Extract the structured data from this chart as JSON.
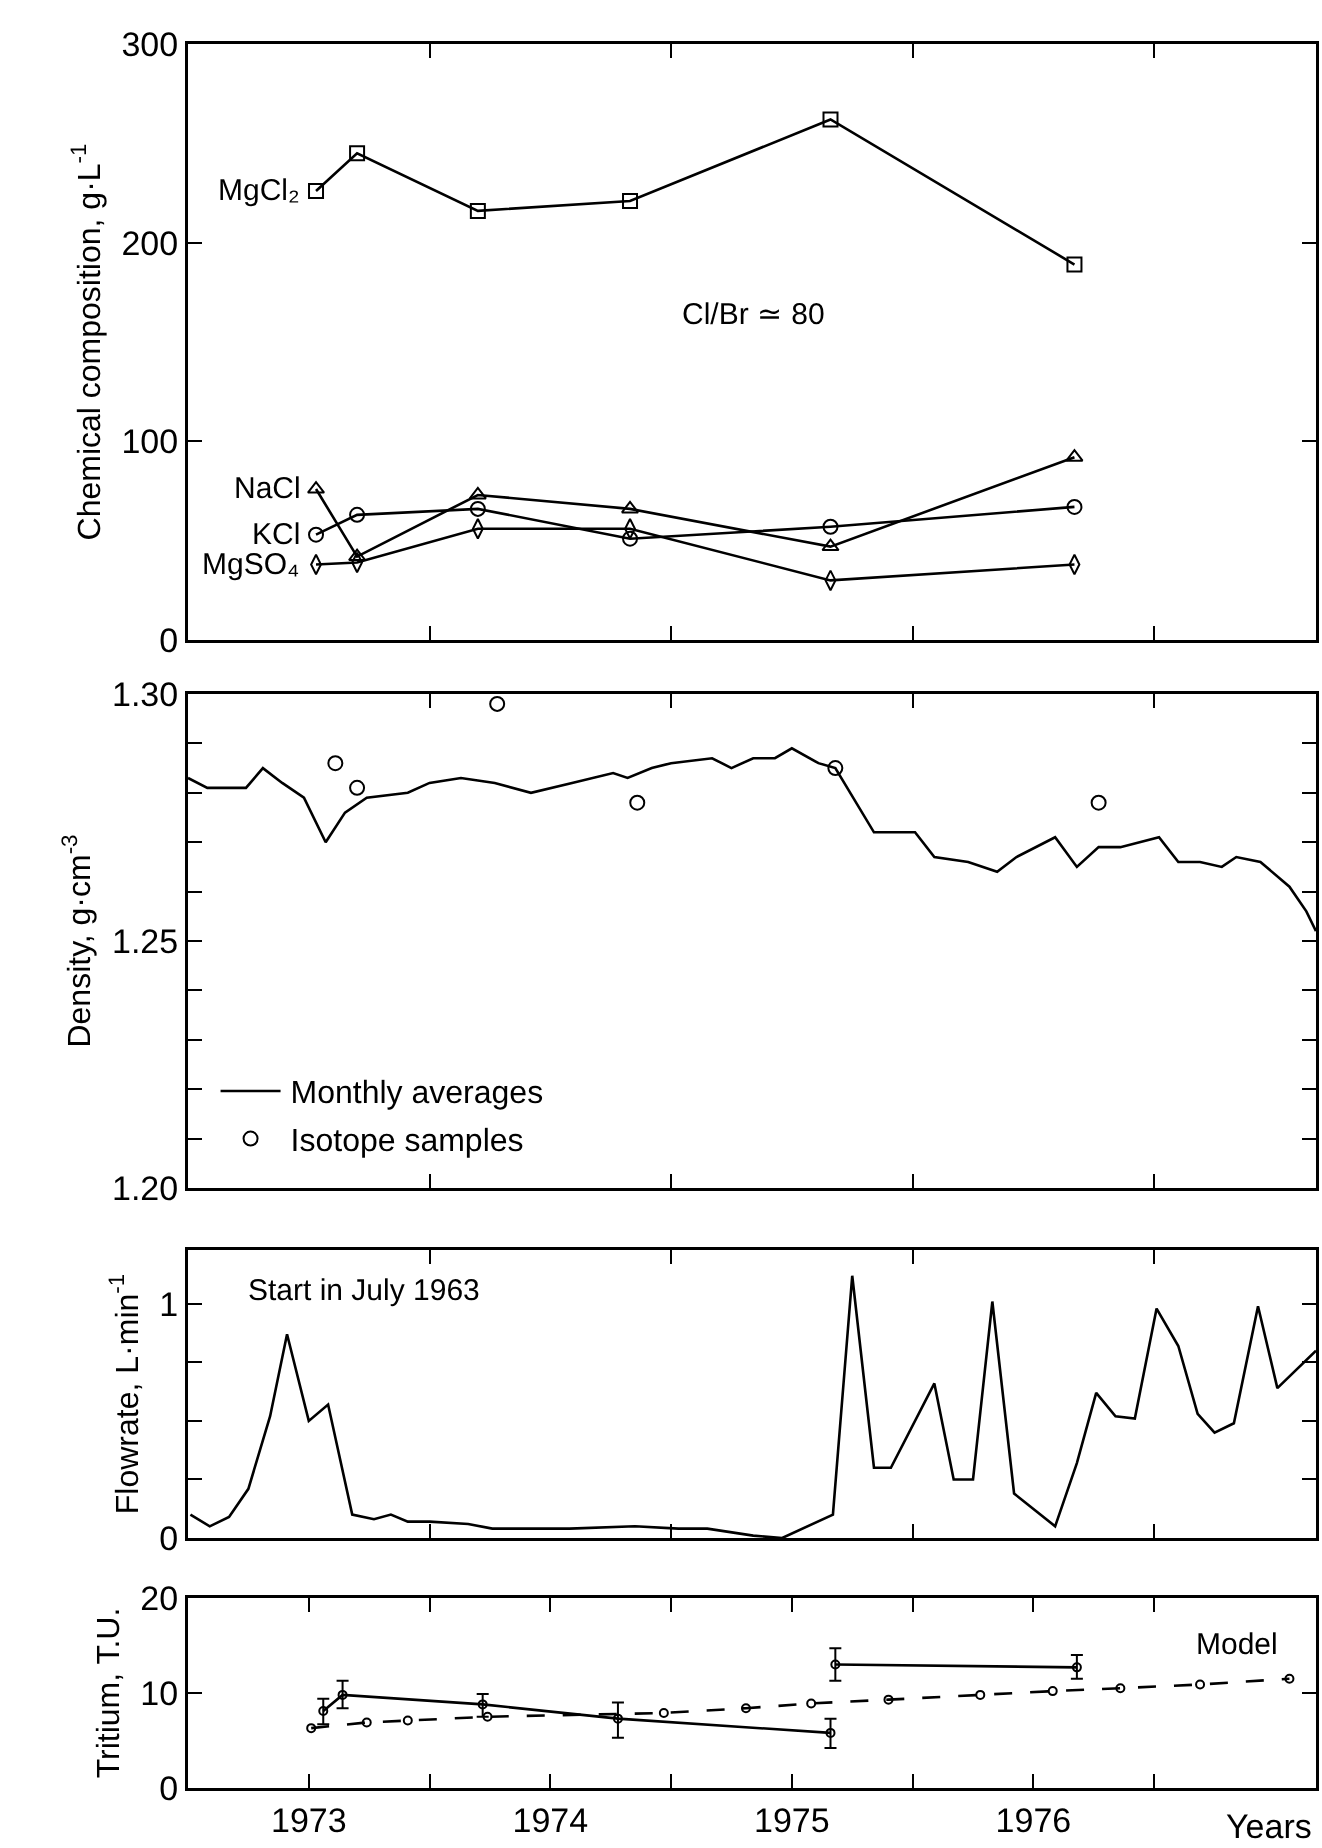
{
  "chart_data": [
    {
      "type": "line",
      "ylabel": "Chemical composition, g·L$^{-1}$",
      "annotations": [
        "Cl/Br ≃ 80"
      ],
      "x": [
        1973.53,
        1973.7,
        1974.2,
        1974.83,
        1975.66,
        1976.67
      ],
      "series": [
        {
          "name": "MgCl₂",
          "color": "#000000",
          "marker": "square",
          "values": [
            226,
            245,
            216,
            221,
            262,
            189
          ]
        },
        {
          "name": "NaCl",
          "color": "#000000",
          "marker": "triangle",
          "values": [
            76,
            42,
            73,
            66,
            47,
            92
          ]
        },
        {
          "name": "KCl",
          "color": "#000000",
          "marker": "circle",
          "values": [
            53,
            63,
            66,
            51,
            57,
            67
          ]
        },
        {
          "name": "MgSO₄",
          "color": "#000000",
          "marker": "diamond",
          "values": [
            38,
            39,
            56,
            56,
            30,
            38
          ]
        }
      ],
      "xlim": [
        1973,
        1977.67
      ],
      "xticks": [
        {
          "value": 1974,
          "label": null
        },
        {
          "value": 1975,
          "label": null
        },
        {
          "value": 1976,
          "label": null
        },
        {
          "value": 1977,
          "label": null
        }
      ],
      "ylim": [
        0,
        300
      ],
      "yticks": [
        0,
        100,
        200,
        300
      ],
      "tick_labels": "y",
      "grid": false,
      "legend": false
    },
    {
      "type": "line",
      "ylabel": "Density, g·cm$^{-3}$",
      "series": [
        {
          "name": "Monthly averages",
          "color": "#000000",
          "marker": "none",
          "x": [
            1973.0,
            1973.08,
            1973.16,
            1973.24,
            1973.31,
            1973.39,
            1973.48,
            1973.57,
            1973.65,
            1973.74,
            1973.91,
            1974.0,
            1974.13,
            1974.27,
            1974.42,
            1974.59,
            1974.76,
            1974.82,
            1974.92,
            1975.0,
            1975.17,
            1975.25,
            1975.34,
            1975.43,
            1975.5,
            1975.61,
            1975.68,
            1975.84,
            1975.93,
            1976.01,
            1976.09,
            1976.23,
            1976.35,
            1976.43,
            1976.59,
            1976.68,
            1976.77,
            1976.86,
            1977.02,
            1977.1,
            1977.19,
            1977.28,
            1977.34,
            1977.44,
            1977.56,
            1977.63,
            1977.67
          ],
          "values": [
            1.283,
            1.281,
            1.281,
            1.281,
            1.285,
            1.282,
            1.279,
            1.27,
            1.276,
            1.279,
            1.28,
            1.282,
            1.283,
            1.282,
            1.28,
            1.282,
            1.284,
            1.283,
            1.285,
            1.286,
            1.287,
            1.285,
            1.287,
            1.287,
            1.289,
            1.286,
            1.285,
            1.272,
            1.272,
            1.272,
            1.267,
            1.266,
            1.264,
            1.267,
            1.271,
            1.265,
            1.269,
            1.269,
            1.271,
            1.266,
            1.266,
            1.265,
            1.267,
            1.266,
            1.261,
            1.256,
            1.252
          ]
        },
        {
          "name": "Isotope samples",
          "type": "scatter",
          "color": "#000000",
          "marker": "circle",
          "x": [
            1973.61,
            1973.7,
            1974.28,
            1974.86,
            1975.68,
            1976.77
          ],
          "values": [
            1.286,
            1.281,
            1.298,
            1.278,
            1.285,
            1.278
          ]
        }
      ],
      "xlim": [
        1973,
        1977.67
      ],
      "xticks": [
        {
          "value": 1974,
          "label": null
        },
        {
          "value": 1975,
          "label": null
        },
        {
          "value": 1976,
          "label": null
        },
        {
          "value": 1977,
          "label": null
        }
      ],
      "ylim": [
        1.2,
        1.3
      ],
      "yticks": [
        {
          "value": 1.2,
          "label": "1.20"
        },
        {
          "value": 1.21,
          "label": null
        },
        {
          "value": 1.22,
          "label": null
        },
        {
          "value": 1.23,
          "label": null
        },
        {
          "value": 1.24,
          "label": null
        },
        {
          "value": 1.25,
          "label": "1.25"
        },
        {
          "value": 1.26,
          "label": null
        },
        {
          "value": 1.27,
          "label": null
        },
        {
          "value": 1.28,
          "label": null
        },
        {
          "value": 1.29,
          "label": null
        },
        {
          "value": 1.3,
          "label": "1.30"
        }
      ],
      "tick_labels": "y",
      "grid": false,
      "legend": "bottom left"
    },
    {
      "type": "line",
      "ylabel": "Flowrate, L·min$^{-1}$",
      "annotations": [
        "Start in July 1963"
      ],
      "x": [
        1973.01,
        1973.09,
        1973.17,
        1973.25,
        1973.34,
        1973.41,
        1973.5,
        1973.58,
        1973.68,
        1973.77,
        1973.84,
        1973.91,
        1974.0,
        1974.16,
        1974.26,
        1974.42,
        1974.58,
        1974.85,
        1975.03,
        1975.15,
        1975.34,
        1975.46,
        1975.67,
        1975.75,
        1975.84,
        1975.91,
        1976.09,
        1976.17,
        1976.25,
        1976.33,
        1976.42,
        1976.59,
        1976.68,
        1976.76,
        1976.84,
        1976.92,
        1977.01,
        1977.1,
        1977.18,
        1977.25,
        1977.33,
        1977.43,
        1977.51,
        1977.67
      ],
      "values": [
        0.1,
        0.05,
        0.09,
        0.21,
        0.52,
        0.87,
        0.5,
        0.57,
        0.1,
        0.08,
        0.1,
        0.07,
        0.07,
        0.06,
        0.04,
        0.04,
        0.04,
        0.05,
        0.04,
        0.04,
        0.01,
        0,
        0.1,
        1.12,
        0.3,
        0.3,
        0.66,
        0.25,
        0.25,
        1.01,
        0.19,
        0.05,
        0.32,
        0.62,
        0.52,
        0.51,
        0.98,
        0.82,
        0.53,
        0.45,
        0.49,
        0.99,
        0.64,
        0.8
      ],
      "color": "#000000",
      "marker": "none",
      "xlim": [
        1973,
        1977.67
      ],
      "xticks": [
        {
          "value": 1974,
          "label": null
        },
        {
          "value": 1975,
          "label": null
        },
        {
          "value": 1976,
          "label": null
        },
        {
          "value": 1977,
          "label": null
        }
      ],
      "ylim": [
        0,
        1.23
      ],
      "yticks": [
        0,
        {
          "value": 0.25,
          "label": null
        },
        {
          "value": 0.5,
          "label": null
        },
        {
          "value": 0.75,
          "label": null
        },
        1
      ],
      "tick_labels": "y",
      "grid": false,
      "legend": false
    },
    {
      "type": "line",
      "ylabel": "Tritium, T.U.",
      "xlabel": "Years",
      "series": [
        {
          "color": "#000000",
          "marker": "circle",
          "x": [
            1973.56,
            1973.64,
            1974.22,
            1974.78,
            1975.66,
            1975.67,
            1975.68,
            1976.68
          ],
          "values": [
            8.1,
            9.8,
            8.8,
            7.3,
            5.8,
            null,
            13.0,
            12.7
          ],
          "errors": [
            [
              6.7,
              9.4
            ],
            [
              8.4,
              11.3
            ],
            [
              7.5,
              9.9
            ],
            [
              5.3,
              9.0
            ],
            [
              4.2,
              7.3
            ],
            null,
            [
              11.3,
              14.7
            ],
            [
              11.5,
              14.0
            ]
          ]
        },
        {
          "name": "Model",
          "color": "#000000",
          "marker": "circle",
          "line_style": "dashed",
          "x": [
            1973.51,
            1973.74,
            1973.91,
            1974.24,
            1974.97,
            1975.31,
            1975.58,
            1975.9,
            1976.28,
            1976.58,
            1976.86,
            1977.19,
            1977.56
          ],
          "values": [
            6.3,
            6.9,
            7.1,
            7.5,
            7.9,
            8.4,
            8.9,
            9.3,
            9.8,
            10.2,
            10.5,
            10.9,
            11.5
          ]
        }
      ],
      "xlim": [
        1973,
        1977.67
      ],
      "xticks": [
        {
          "value": 1973.5,
          "label": "1973"
        },
        {
          "value": 1974,
          "label": null
        },
        {
          "value": 1974.5,
          "label": "1974"
        },
        {
          "value": 1975,
          "label": null
        },
        {
          "value": 1975.5,
          "label": "1975"
        },
        {
          "value": 1976,
          "label": null
        },
        {
          "value": 1976.5,
          "label": "1976"
        },
        {
          "value": 1977,
          "label": null
        }
      ],
      "ylim": [
        0,
        20
      ],
      "yticks": [
        0,
        10,
        20
      ],
      "grid": false,
      "legend": false
    }
  ]
}
